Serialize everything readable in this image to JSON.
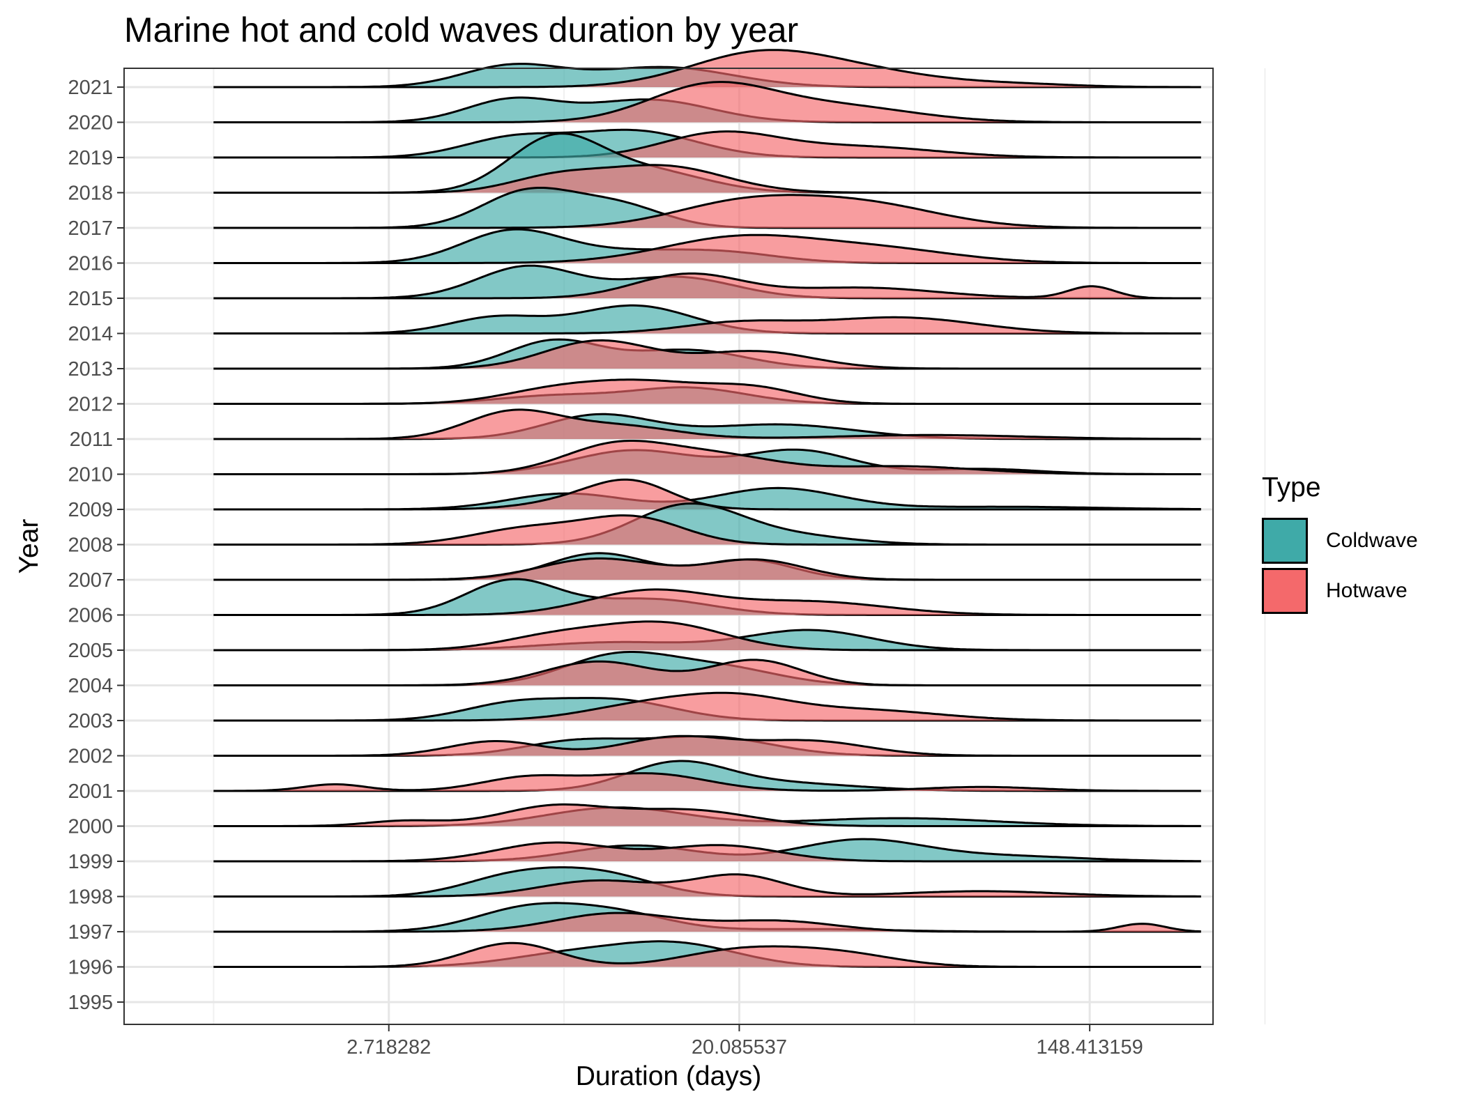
{
  "chart_data": {
    "type": "area",
    "title": "Marine hot and cold waves duration by year",
    "xlabel": "Duration (days)",
    "ylabel": "Year",
    "x_scale": "log",
    "x_range": [
      0.6,
      300
    ],
    "x_ticks": [
      2.718282,
      20.085537,
      148.413159
    ],
    "x_tick_labels": [
      "2.718282",
      "20.085537",
      "148.413159"
    ],
    "y_categories": [
      "1995",
      "1996",
      "1997",
      "1998",
      "1999",
      "2000",
      "2001",
      "2002",
      "2003",
      "2004",
      "2005",
      "2006",
      "2007",
      "2008",
      "2009",
      "2010",
      "2011",
      "2012",
      "2013",
      "2014",
      "2015",
      "2016",
      "2017",
      "2018",
      "2019",
      "2020",
      "2021"
    ],
    "legend": {
      "title": "Type",
      "position": "right"
    },
    "series": [
      {
        "name": "Coldwave",
        "color": "#3FAAA8",
        "densities": {
          "1996": [
            [
              7.5,
              0.45,
              0.16
            ],
            [
              14,
              0.85,
              0.16
            ]
          ],
          "1997": [
            [
              6,
              0.85,
              0.14
            ],
            [
              10,
              0.65,
              0.14
            ],
            [
              30,
              0.1,
              0.2
            ]
          ],
          "1998": [
            [
              5.5,
              0.7,
              0.13
            ],
            [
              9,
              0.85,
              0.14
            ]
          ],
          "1999": [
            [
              11,
              0.6,
              0.16
            ],
            [
              40,
              0.8,
              0.16
            ],
            [
              90,
              0.2,
              0.2
            ]
          ],
          "2000": [
            [
              10,
              0.7,
              0.18
            ],
            [
              50,
              0.3,
              0.25
            ]
          ],
          "2001": [
            [
              14,
              1.0,
              0.13
            ],
            [
              25,
              0.3,
              0.2
            ]
          ],
          "2002": [
            [
              8,
              0.55,
              0.14
            ],
            [
              17,
              0.7,
              0.16
            ]
          ],
          "2003": [
            [
              5.5,
              0.6,
              0.13
            ],
            [
              10,
              0.75,
              0.15
            ]
          ],
          "2004": [
            [
              10,
              1.1,
              0.14
            ],
            [
              18,
              0.65,
              0.15
            ]
          ],
          "2005": [
            [
              10,
              0.3,
              0.2
            ],
            [
              30,
              0.75,
              0.16
            ]
          ],
          "2006": [
            [
              5.5,
              1.3,
              0.12
            ],
            [
              12,
              0.6,
              0.16
            ]
          ],
          "2007": [
            [
              9,
              1.0,
              0.13
            ],
            [
              21,
              0.75,
              0.12
            ]
          ],
          "2008": [
            [
              15,
              1.5,
              0.14
            ],
            [
              28,
              0.3,
              0.15
            ]
          ],
          "2009": [
            [
              7.5,
              0.6,
              0.15
            ],
            [
              25,
              0.8,
              0.16
            ],
            [
              90,
              0.1,
              0.25
            ]
          ],
          "2010": [
            [
              11,
              0.9,
              0.16
            ],
            [
              28,
              0.9,
              0.14
            ],
            [
              80,
              0.2,
              0.15
            ]
          ],
          "2011": [
            [
              9,
              0.9,
              0.14
            ],
            [
              25,
              0.55,
              0.2
            ]
          ],
          "2012": [
            [
              7,
              0.3,
              0.15
            ],
            [
              15,
              0.6,
              0.15
            ]
          ],
          "2013": [
            [
              7,
              1.05,
              0.12
            ],
            [
              15,
              0.7,
              0.15
            ]
          ],
          "2014": [
            [
              5,
              0.6,
              0.12
            ],
            [
              11,
              1.05,
              0.15
            ]
          ],
          "2015": [
            [
              6,
              1.2,
              0.13
            ],
            [
              14,
              0.8,
              0.15
            ]
          ],
          "2016": [
            [
              5.5,
              1.2,
              0.13
            ],
            [
              10,
              0.35,
              0.15
            ],
            [
              18,
              0.4,
              0.15
            ]
          ],
          "2017": [
            [
              6,
              1.35,
              0.12
            ],
            [
              10,
              0.85,
              0.12
            ]
          ],
          "2018": [
            [
              7,
              2.0,
              0.12
            ],
            [
              12,
              0.8,
              0.15
            ]
          ],
          "2019": [
            [
              5.5,
              0.7,
              0.13
            ],
            [
              11,
              1.0,
              0.16
            ]
          ],
          "2020": [
            [
              5.5,
              0.85,
              0.12
            ],
            [
              12,
              0.85,
              0.16
            ]
          ],
          "2021": [
            [
              5.5,
              0.8,
              0.13
            ],
            [
              13,
              0.75,
              0.18
            ]
          ]
        }
      },
      {
        "name": "Hotwave",
        "color": "#F4696B",
        "densities": {
          "1996": [
            [
              5.5,
              0.9,
              0.12
            ],
            [
              20,
              0.6,
              0.15
            ],
            [
              35,
              0.5,
              0.15
            ]
          ],
          "1997": [
            [
              10,
              0.7,
              0.16
            ],
            [
              25,
              0.4,
              0.15
            ],
            [
              200,
              0.3,
              0.06
            ]
          ],
          "1998": [
            [
              9,
              0.6,
              0.15
            ],
            [
              20,
              0.8,
              0.12
            ],
            [
              80,
              0.2,
              0.2
            ]
          ],
          "1999": [
            [
              7,
              0.7,
              0.15
            ],
            [
              18,
              0.6,
              0.15
            ]
          ],
          "2000": [
            [
              3,
              0.2,
              0.1
            ],
            [
              7,
              0.75,
              0.14
            ],
            [
              15,
              0.6,
              0.16
            ]
          ],
          "2001": [
            [
              2,
              0.25,
              0.08
            ],
            [
              6,
              0.5,
              0.12
            ],
            [
              12,
              0.65,
              0.15
            ],
            [
              80,
              0.15,
              0.15
            ]
          ],
          "2002": [
            [
              5,
              0.55,
              0.12
            ],
            [
              14,
              0.7,
              0.14
            ],
            [
              30,
              0.55,
              0.15
            ]
          ],
          "2003": [
            [
              12,
              0.6,
              0.16
            ],
            [
              20,
              0.7,
              0.14
            ],
            [
              40,
              0.4,
              0.2
            ]
          ],
          "2004": [
            [
              9,
              0.9,
              0.14
            ],
            [
              22,
              0.95,
              0.12
            ]
          ],
          "2005": [
            [
              7,
              0.5,
              0.14
            ],
            [
              13,
              1.0,
              0.16
            ]
          ],
          "2006": [
            [
              12,
              0.9,
              0.16
            ],
            [
              30,
              0.5,
              0.2
            ]
          ],
          "2007": [
            [
              9,
              0.8,
              0.15
            ],
            [
              22,
              0.75,
              0.13
            ]
          ],
          "2008": [
            [
              6,
              0.6,
              0.14
            ],
            [
              11,
              1.0,
              0.13
            ]
          ],
          "2009": [
            [
              9,
              0.5,
              0.14
            ],
            [
              11,
              0.7,
              0.1
            ]
          ],
          "2010": [
            [
              10,
              1.1,
              0.14
            ],
            [
              18,
              0.65,
              0.15
            ],
            [
              50,
              0.3,
              0.2
            ]
          ],
          "2011": [
            [
              5.5,
              1.0,
              0.12
            ],
            [
              10,
              0.5,
              0.15
            ],
            [
              60,
              0.15,
              0.25
            ]
          ],
          "2012": [
            [
              7,
              0.5,
              0.14
            ],
            [
              12,
              0.75,
              0.15
            ],
            [
              22,
              0.55,
              0.12
            ]
          ],
          "2013": [
            [
              9,
              1.05,
              0.14
            ],
            [
              22,
              0.65,
              0.15
            ]
          ],
          "2014": [
            [
              20,
              0.4,
              0.15
            ],
            [
              50,
              0.6,
              0.2
            ]
          ],
          "2015": [
            [
              15,
              0.9,
              0.14
            ],
            [
              40,
              0.4,
              0.2
            ],
            [
              150,
              0.45,
              0.06
            ]
          ],
          "2016": [
            [
              20,
              0.95,
              0.2
            ],
            [
              45,
              0.5,
              0.2
            ]
          ],
          "2017": [
            [
              20,
              0.85,
              0.18
            ],
            [
              40,
              0.9,
              0.2
            ]
          ],
          "2018": [
            [
              7,
              0.55,
              0.12
            ],
            [
              13,
              1.0,
              0.16
            ]
          ],
          "2019": [
            [
              18,
              0.9,
              0.15
            ],
            [
              40,
              0.4,
              0.2
            ]
          ],
          "2020": [
            [
              17,
              1.35,
              0.16
            ],
            [
              35,
              0.6,
              0.2
            ]
          ],
          "2021": [
            [
              22,
              1.15,
              0.18
            ],
            [
              40,
              0.55,
              0.2
            ],
            [
              100,
              0.1,
              0.15
            ]
          ]
        }
      }
    ],
    "grid": true
  }
}
